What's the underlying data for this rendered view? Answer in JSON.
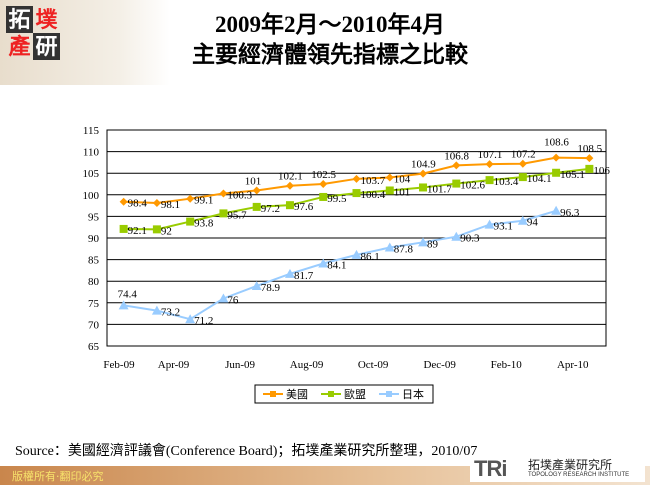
{
  "header": {
    "title_line1": "2009年2月～2010年4月",
    "title_line2": "主要經濟體領先指標之比較",
    "logo_chars": [
      "拓",
      "墣",
      "產",
      "研"
    ]
  },
  "chart_data": {
    "type": "line",
    "categories": [
      "Feb-09",
      "Mar-09",
      "Apr-09",
      "May-09",
      "Jun-09",
      "Jul-09",
      "Aug-09",
      "Sep-09",
      "Oct-09",
      "Nov-09",
      "Dec-09",
      "Jan-10",
      "Feb-10",
      "Mar-10",
      "Apr-10"
    ],
    "tick_labels": [
      "Feb-09",
      "Apr-09",
      "Jun-09",
      "Aug-09",
      "Oct-09",
      "Dec-09",
      "Feb-10",
      "Apr-10"
    ],
    "ylim": [
      65,
      115
    ],
    "yticks": [
      65,
      70,
      75,
      80,
      85,
      90,
      95,
      100,
      105,
      110,
      115
    ],
    "grid": true,
    "legend_position": "bottom",
    "series": [
      {
        "name": "美國",
        "color": "#ff9900",
        "marker": "diamond",
        "values": [
          98.4,
          98.1,
          99.1,
          100.3,
          101,
          102.1,
          102.5,
          103.7,
          104,
          104.9,
          106.8,
          107.1,
          107.2,
          108.6,
          108.5
        ]
      },
      {
        "name": "歐盟",
        "color": "#99cc00",
        "marker": "square",
        "values": [
          92.1,
          92,
          93.8,
          95.7,
          97.2,
          97.6,
          99.5,
          100.4,
          101,
          101.7,
          102.6,
          103.4,
          104.1,
          105.1,
          106
        ]
      },
      {
        "name": "日本",
        "color": "#99ccff",
        "marker": "triangle",
        "values": [
          74.4,
          73.2,
          71.2,
          76,
          78.9,
          81.7,
          84.1,
          86.1,
          87.8,
          89,
          90.3,
          93.1,
          94,
          96.3,
          null
        ]
      }
    ]
  },
  "source": "Source：美國經濟評議會(Conference Board)；拓墣產業研究所整理，2010/07",
  "footer": {
    "copyright": "版權所有‧翻印必究",
    "brand": "TRi",
    "brand_cn": "拓墣產業研究所",
    "brand_en": "TOPOLOGY RESEARCH INSTITUTE"
  }
}
